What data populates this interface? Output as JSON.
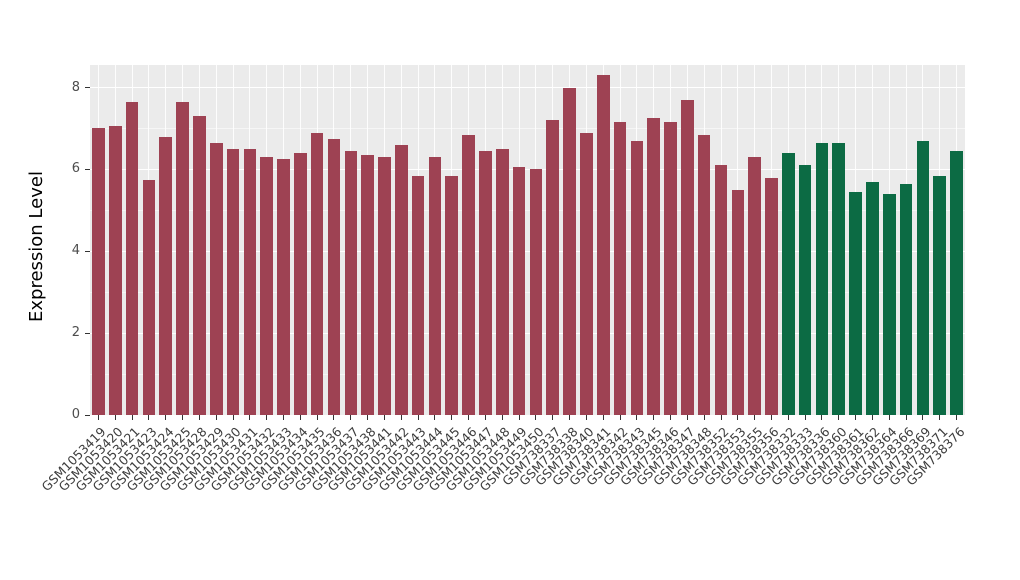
{
  "chart_data": {
    "type": "bar",
    "title": "",
    "xlabel": "",
    "ylabel": "Expression Level",
    "ylim": [
      0,
      8.55
    ],
    "yticks": [
      0,
      2,
      4,
      6,
      8
    ],
    "yticks_minor": [
      1,
      3,
      5,
      7
    ],
    "grid": true,
    "legend_position": "none",
    "panel_background": "#EBEBEB",
    "gridline_color": "#FFFFFF",
    "group_colors": {
      "group1": "#9E4253",
      "group2": "#0C6B44"
    },
    "categories": [
      "GSM1053419",
      "GSM1053420",
      "GSM1053421",
      "GSM1053423",
      "GSM1053424",
      "GSM1053425",
      "GSM1053428",
      "GSM1053429",
      "GSM1053430",
      "GSM1053431",
      "GSM1053432",
      "GSM1053433",
      "GSM1053434",
      "GSM1053435",
      "GSM1053436",
      "GSM1053437",
      "GSM1053438",
      "GSM1053441",
      "GSM1053442",
      "GSM1053443",
      "GSM1053444",
      "GSM1053445",
      "GSM1053446",
      "GSM1053447",
      "GSM1053448",
      "GSM1053449",
      "GSM1053450",
      "GSM738337",
      "GSM738338",
      "GSM738340",
      "GSM738341",
      "GSM738342",
      "GSM738343",
      "GSM738345",
      "GSM738346",
      "GSM738347",
      "GSM738348",
      "GSM738352",
      "GSM738353",
      "GSM738355",
      "GSM738356",
      "GSM738332",
      "GSM738333",
      "GSM738336",
      "GSM738360",
      "GSM738361",
      "GSM738362",
      "GSM738364",
      "GSM738366",
      "GSM738369",
      "GSM738371",
      "GSM738376"
    ],
    "values": [
      7.0,
      7.05,
      7.65,
      5.75,
      6.8,
      7.65,
      7.3,
      6.65,
      6.5,
      6.5,
      6.3,
      6.25,
      6.4,
      6.9,
      6.75,
      6.45,
      6.35,
      6.3,
      6.6,
      5.85,
      6.3,
      5.85,
      6.85,
      6.45,
      6.5,
      6.05,
      6.0,
      7.2,
      8.0,
      6.9,
      8.3,
      7.15,
      6.7,
      7.25,
      7.15,
      7.7,
      6.85,
      6.1,
      5.5,
      6.3,
      5.8,
      6.4,
      6.1,
      6.65,
      6.65,
      5.45,
      5.7,
      5.4,
      5.65,
      6.7,
      5.85,
      6.45
    ],
    "bar_group": [
      "group1",
      "group1",
      "group1",
      "group1",
      "group1",
      "group1",
      "group1",
      "group1",
      "group1",
      "group1",
      "group1",
      "group1",
      "group1",
      "group1",
      "group1",
      "group1",
      "group1",
      "group1",
      "group1",
      "group1",
      "group1",
      "group1",
      "group1",
      "group1",
      "group1",
      "group1",
      "group1",
      "group1",
      "group1",
      "group1",
      "group1",
      "group1",
      "group1",
      "group1",
      "group1",
      "group1",
      "group1",
      "group1",
      "group1",
      "group1",
      "group1",
      "group2",
      "group2",
      "group2",
      "group2",
      "group2",
      "group2",
      "group2",
      "group2",
      "group2",
      "group2",
      "group2"
    ]
  },
  "axes": {
    "y_tick_labels": [
      "0",
      "2",
      "4",
      "6",
      "8"
    ]
  }
}
